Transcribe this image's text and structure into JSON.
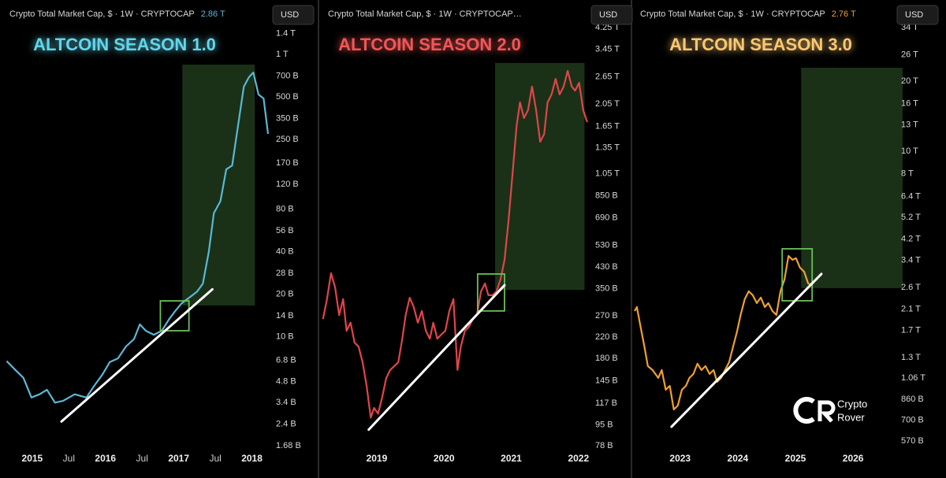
{
  "chart_data": [
    {
      "type": "line",
      "title": "ALTCOIN SEASON 1.0",
      "header": "Crypto Total Market Cap, $ · 1W · CRYPTOCAP",
      "price": "2.86 T",
      "currency": "USD",
      "color": "#5ab8d6",
      "title_color": "#62d6ea",
      "log": true,
      "xlim": [
        2014.56,
        2018.22
      ],
      "ylim": [
        1.6,
        1650
      ],
      "xticks": [
        2015,
        {
          "value": 2015.5,
          "label": "Jul"
        },
        2016,
        {
          "value": 2016.5,
          "label": "Jul"
        },
        2017,
        {
          "value": 2017.5,
          "label": "Jul"
        },
        2018
      ],
      "yticks": [
        {
          "value": 1400,
          "label": "1.4 T"
        },
        {
          "value": 1000,
          "label": "1 T"
        },
        {
          "value": 700,
          "label": "700 B"
        },
        {
          "value": 500,
          "label": "500 B"
        },
        {
          "value": 350,
          "label": "350 B"
        },
        {
          "value": 250,
          "label": "250 B"
        },
        {
          "value": 170,
          "label": "170 B"
        },
        {
          "value": 120,
          "label": "120 B"
        },
        {
          "value": 80,
          "label": "80 B"
        },
        {
          "value": 56,
          "label": "56 B"
        },
        {
          "value": 40,
          "label": "40 B"
        },
        {
          "value": 28,
          "label": "28 B"
        },
        {
          "value": 20,
          "label": "20 B"
        },
        {
          "value": 14,
          "label": "14 B"
        },
        {
          "value": 10,
          "label": "10 B"
        },
        {
          "value": 6.8,
          "label": "6.8 B"
        },
        {
          "value": 4.8,
          "label": "4.8 B"
        },
        {
          "value": 3.4,
          "label": "3.4 B"
        },
        {
          "value": 2.4,
          "label": "2.4 B"
        },
        {
          "value": 1.68,
          "label": "1.68 B"
        }
      ],
      "x": [
        2014.65,
        2014.77,
        2014.88,
        2014.99,
        2015.1,
        2015.2,
        2015.31,
        2015.42,
        2015.58,
        2015.74,
        2015.85,
        2015.96,
        2016.06,
        2016.17,
        2016.28,
        2016.39,
        2016.47,
        2016.55,
        2016.66,
        2016.77,
        2016.87,
        2016.95,
        2017.04,
        2017.14,
        2017.25,
        2017.33,
        2017.41,
        2017.48,
        2017.57,
        2017.65,
        2017.73,
        2017.81,
        2017.89,
        2017.96,
        2018.02,
        2018.09,
        2018.16,
        2018.22
      ],
      "values": [
        6.7,
        5.8,
        5.1,
        3.7,
        3.9,
        4.2,
        3.4,
        3.5,
        3.9,
        3.7,
        4.5,
        5.4,
        6.6,
        7.0,
        8.5,
        9.6,
        12.2,
        11,
        10.3,
        11,
        13.3,
        15.1,
        17.2,
        18.8,
        20.8,
        23.7,
        39.7,
        75,
        91,
        153,
        163,
        311,
        590,
        689,
        744,
        519,
        486,
        273
      ],
      "trendline": {
        "x": [
          2015.4,
          2017.46
        ],
        "values": [
          2.5,
          21.6
        ],
        "color": "#ffffff"
      },
      "zone": {
        "x": [
          2017.05,
          2018.04
        ],
        "values": [
          845,
          16.6
        ],
        "color": "#2f5a2a"
      },
      "box": {
        "x": [
          2016.75,
          2017.14
        ],
        "values": [
          17.9,
          11.0
        ],
        "color": "#6abf5a"
      }
    },
    {
      "type": "line",
      "title": "ALTCOIN SEASON 2.0",
      "header": "Crypto Total Market Cap, $ · 1W · CRYPTOCAP…",
      "currency": "USD",
      "color": "#e0454a",
      "title_color": "#f25656",
      "log": true,
      "xlim": [
        2018.18,
        2022.19
      ],
      "ylim": [
        75.7,
        4415
      ],
      "xticks": [
        2019,
        2020,
        2021,
        2022
      ],
      "yticks": [
        {
          "value": 4250,
          "label": "4.25 T"
        },
        {
          "value": 3450,
          "label": "3.45 T"
        },
        {
          "value": 2650,
          "label": "2.65 T"
        },
        {
          "value": 2050,
          "label": "2.05 T"
        },
        {
          "value": 1650,
          "label": "1.65 T"
        },
        {
          "value": 1350,
          "label": "1.35 T"
        },
        {
          "value": 1050,
          "label": "1.05 T"
        },
        {
          "value": 850,
          "label": "850 B"
        },
        {
          "value": 690,
          "label": "690 B"
        },
        {
          "value": 530,
          "label": "530 B"
        },
        {
          "value": 430,
          "label": "430 B"
        },
        {
          "value": 350,
          "label": "350 B"
        },
        {
          "value": 270,
          "label": "270 B"
        },
        {
          "value": 220,
          "label": "220 B"
        },
        {
          "value": 180,
          "label": "180 B"
        },
        {
          "value": 145,
          "label": "145 B"
        },
        {
          "value": 117,
          "label": "117 B"
        },
        {
          "value": 95,
          "label": "95 B"
        },
        {
          "value": 78,
          "label": "78 B"
        }
      ],
      "x": [
        2018.2,
        2018.26,
        2018.32,
        2018.38,
        2018.44,
        2018.5,
        2018.55,
        2018.61,
        2018.67,
        2018.73,
        2018.79,
        2018.85,
        2018.91,
        2018.96,
        2019.02,
        2019.08,
        2019.14,
        2019.2,
        2019.26,
        2019.32,
        2019.38,
        2019.43,
        2019.49,
        2019.55,
        2019.61,
        2019.67,
        2019.73,
        2019.79,
        2019.84,
        2019.9,
        2019.96,
        2020.02,
        2020.08,
        2020.14,
        2020.2,
        2020.25,
        2020.31,
        2020.37,
        2020.43,
        2020.49,
        2020.55,
        2020.61,
        2020.66,
        2020.72,
        2020.78,
        2020.84,
        2020.9,
        2020.96,
        2021.02,
        2021.08,
        2021.13,
        2021.19,
        2021.25,
        2021.31,
        2021.37,
        2021.43,
        2021.49,
        2021.54,
        2021.6,
        2021.66,
        2021.72,
        2021.78,
        2021.84,
        2021.9,
        2021.95,
        2022.01,
        2022.07,
        2022.13
      ],
      "values": [
        262,
        317,
        406,
        354,
        272,
        317,
        234,
        253,
        209,
        201,
        173,
        138,
        102,
        112,
        106,
        124,
        149,
        161,
        167,
        173,
        217,
        272,
        321,
        294,
        253,
        283,
        234,
        217,
        253,
        217,
        226,
        234,
        283,
        317,
        161,
        201,
        234,
        243,
        262,
        272,
        341,
        368,
        329,
        329,
        341,
        382,
        461,
        672,
        1055,
        1659,
        2080,
        1790,
        1930,
        2420,
        1930,
        1427,
        1538,
        2080,
        2243,
        2604,
        2243,
        2420,
        2808,
        2420,
        2327,
        2508,
        1930,
        1721
      ],
      "trendline": {
        "x": [
          2018.88,
          2020.9
        ],
        "values": [
          91,
          362
        ],
        "color": "#ffffff"
      },
      "zone": {
        "x": [
          2020.76,
          2022.09
        ],
        "values": [
          3032,
          346
        ],
        "color": "#2f5a2a"
      },
      "box": {
        "x": [
          2020.5,
          2020.9
        ],
        "values": [
          403,
          283
        ],
        "color": "#6abf5a"
      }
    },
    {
      "type": "line",
      "title": "ALTCOIN SEASON 3.0",
      "header": "Crypto Total Market Cap, $ · 1W · CRYPTOCAP",
      "price": "2.76 T",
      "currency": "USD",
      "color": "#f0a030",
      "title_color": "#fcc872",
      "log": true,
      "xlim": [
        2022.21,
        2026.86
      ],
      "ylim": [
        527,
        35340
      ],
      "xticks": [
        2023,
        2024,
        2025,
        2026
      ],
      "yticks": [
        {
          "value": 34000,
          "label": "34 T"
        },
        {
          "value": 26000,
          "label": "26 T"
        },
        {
          "value": 20000,
          "label": "20 T"
        },
        {
          "value": 16000,
          "label": "16 T"
        },
        {
          "value": 13000,
          "label": "13 T"
        },
        {
          "value": 10000,
          "label": "10 T"
        },
        {
          "value": 8000,
          "label": "8 T"
        },
        {
          "value": 6400,
          "label": "6.4 T"
        },
        {
          "value": 5200,
          "label": "5.2 T"
        },
        {
          "value": 4200,
          "label": "4.2 T"
        },
        {
          "value": 3400,
          "label": "3.4 T"
        },
        {
          "value": 2600,
          "label": "2.6 T"
        },
        {
          "value": 2100,
          "label": "2.1 T"
        },
        {
          "value": 1700,
          "label": "1.7 T"
        },
        {
          "value": 1300,
          "label": "1.3 T"
        },
        {
          "value": 1060,
          "label": "1.06 T"
        },
        {
          "value": 860,
          "label": "860 B"
        },
        {
          "value": 700,
          "label": "700 B"
        },
        {
          "value": 570,
          "label": "570 B"
        }
      ],
      "x": [
        2022.21,
        2022.25,
        2022.3,
        2022.38,
        2022.44,
        2022.52,
        2022.62,
        2022.68,
        2022.75,
        2022.82,
        2022.89,
        2022.96,
        2023.03,
        2023.1,
        2023.16,
        2023.23,
        2023.3,
        2023.37,
        2023.44,
        2023.51,
        2023.58,
        2023.64,
        2023.71,
        2023.78,
        2023.85,
        2023.92,
        2023.99,
        2024.05,
        2024.12,
        2024.19,
        2024.26,
        2024.33,
        2024.4,
        2024.47,
        2024.53,
        2024.6,
        2024.67,
        2024.74,
        2024.81,
        2024.88,
        2024.95,
        2025.01,
        2025.08,
        2025.15,
        2025.22,
        2025.29
      ],
      "values": [
        2060,
        2142,
        1833,
        1451,
        1195,
        1149,
        1063,
        1149,
        946,
        983,
        778,
        809,
        946,
        983,
        1063,
        1105,
        1223,
        1149,
        1195,
        1105,
        1149,
        1022,
        1063,
        1149,
        1242,
        1451,
        1696,
        1982,
        2316,
        2504,
        2408,
        2227,
        2352,
        2142,
        2227,
        2060,
        1982,
        2504,
        2814,
        3553,
        3418,
        3472,
        3162,
        3041,
        2706,
        2664
      ],
      "trendline": {
        "x": [
          2022.85,
          2025.45
        ],
        "values": [
          656,
          2971
        ],
        "color": "#ffffff"
      },
      "zone": {
        "x": [
          2025.1,
          2026.86
        ],
        "values": [
          22850,
          2583
        ],
        "color": "#2f5a2a"
      },
      "box": {
        "x": [
          2024.77,
          2025.29
        ],
        "values": [
          3812,
          2280
        ],
        "color": "#6abf5a"
      }
    }
  ],
  "watermark": {
    "line1": "Crypto",
    "line2": "Rover"
  }
}
